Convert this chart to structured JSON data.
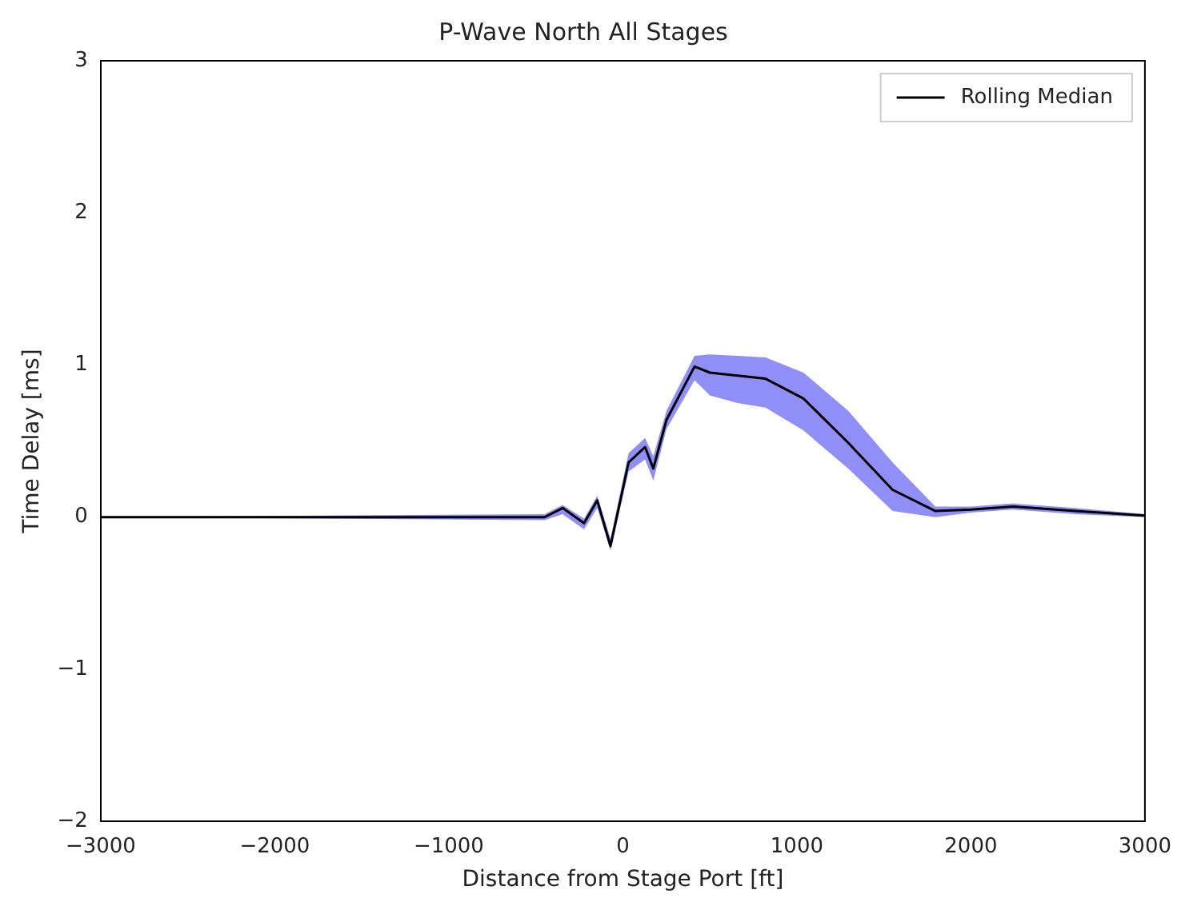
{
  "chart_data": {
    "type": "line",
    "title": "P-Wave North All Stages",
    "xlabel": "Distance from Stage Port [ft]",
    "ylabel": "Time Delay [ms]",
    "xlim": [
      -3000,
      3000
    ],
    "xticks": [
      -3000,
      -2000,
      -1000,
      0,
      1000,
      2000,
      3000
    ],
    "ylim": [
      -2,
      3
    ],
    "yticks": [
      -2,
      -1,
      0,
      1,
      2,
      3
    ],
    "grid": false,
    "legend": "top right",
    "marker": "none",
    "line_style": "solid",
    "x": [
      -3000,
      -450,
      -346,
      -223,
      -147,
      -71,
      33,
      128,
      175,
      251,
      412,
      500,
      659,
      820,
      1038,
      1294,
      1550,
      1796,
      2000,
      2241,
      2600,
      3000
    ],
    "series": [
      {
        "name": "Rolling Median",
        "color": "#000000",
        "values": [
          0,
          0,
          0.06,
          -0.04,
          0.11,
          -0.19,
          0.36,
          0.46,
          0.32,
          0.64,
          0.99,
          0.95,
          0.93,
          0.91,
          0.78,
          0.49,
          0.18,
          0.04,
          0.05,
          0.07,
          0.04,
          0.01
        ],
        "lower": [
          0,
          -0.02,
          0.02,
          -0.08,
          0.06,
          -0.22,
          0.3,
          0.38,
          0.24,
          0.58,
          0.9,
          0.8,
          0.75,
          0.72,
          0.57,
          0.32,
          0.04,
          0,
          0.03,
          0.05,
          0.02,
          0
        ],
        "upper": [
          0,
          0.02,
          0.08,
          -0.01,
          0.14,
          -0.14,
          0.42,
          0.52,
          0.4,
          0.7,
          1.06,
          1.07,
          1.06,
          1.05,
          0.95,
          0.7,
          0.36,
          0.07,
          0.07,
          0.09,
          0.06,
          0.02
        ]
      }
    ]
  }
}
